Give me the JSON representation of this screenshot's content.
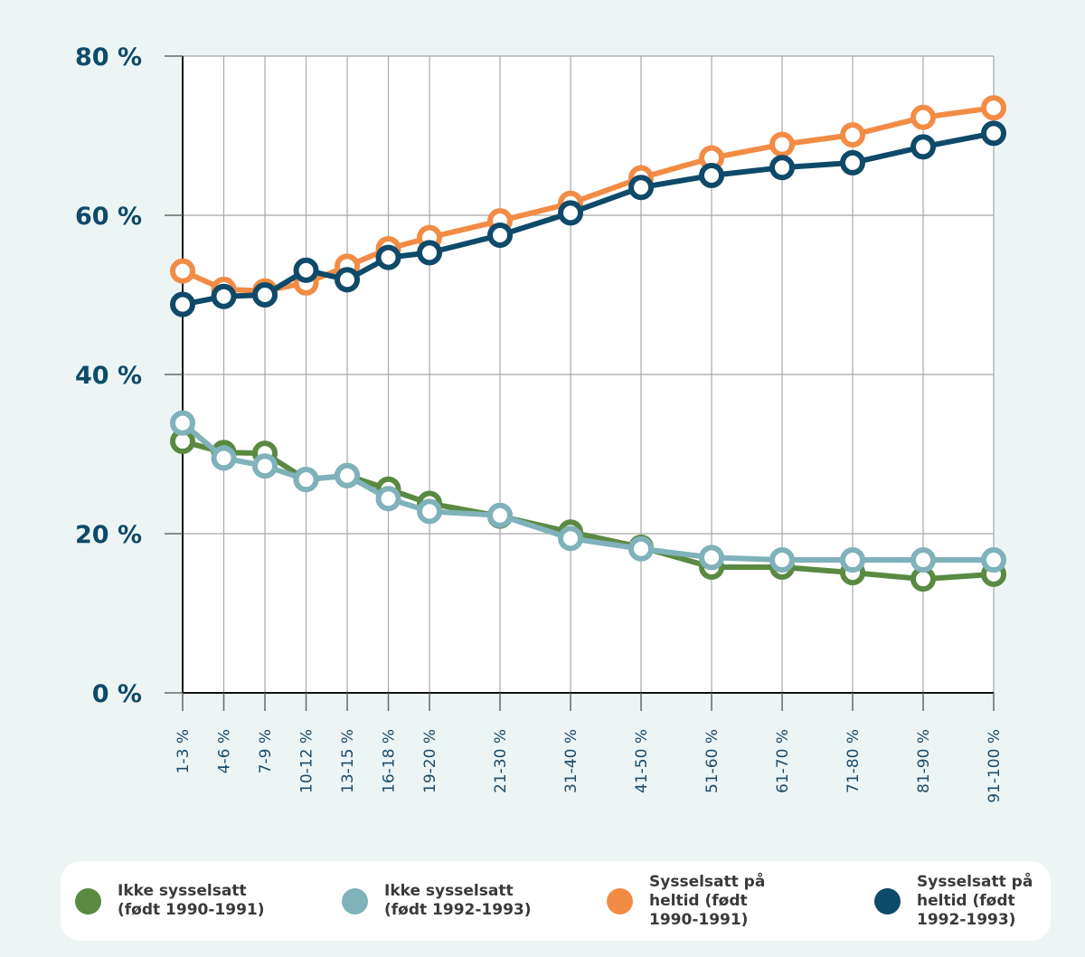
{
  "chart_data": {
    "type": "line",
    "title": "",
    "xlabel": "",
    "ylabel": "",
    "ylim": [
      0,
      80
    ],
    "y_ticks": [
      0,
      20,
      40,
      60,
      80
    ],
    "y_tick_labels": [
      "0 %",
      "20 %",
      "40 %",
      "60 %",
      "80 %"
    ],
    "grid": true,
    "legend_position": "bottom",
    "categories": [
      "1-3 %",
      "4-6 %",
      "7-9 %",
      "10-12 %",
      "13-15 %",
      "16-18 %",
      "19-20 %",
      "21-30 %",
      "31-40 %",
      "41-50 %",
      "51-60 %",
      "61-70 %",
      "71-80 %",
      "81-90 %",
      "91-100 %"
    ],
    "series": [
      {
        "name": "Ikke sysselsatt (født 1990-1991)",
        "color": "#5a8a42",
        "values": [
          31.6,
          30.2,
          30.1,
          26.8,
          27.3,
          25.6,
          23.8,
          22.2,
          20.2,
          18.3,
          15.8,
          15.8,
          15.1,
          14.3,
          14.9
        ]
      },
      {
        "name": "Ikke sysselsatt (født 1992-1993)",
        "color": "#7fb2ba",
        "values": [
          33.9,
          29.5,
          28.5,
          26.8,
          27.3,
          24.4,
          22.8,
          22.3,
          19.4,
          18.1,
          17.0,
          16.7,
          16.7,
          16.7,
          16.7
        ]
      },
      {
        "name": "Sysselsatt på heltid (født 1990-1991)",
        "color": "#f28c45",
        "values": [
          53.0,
          50.7,
          50.5,
          51.5,
          53.6,
          55.8,
          57.2,
          59.3,
          61.5,
          64.7,
          67.2,
          68.9,
          70.1,
          72.3,
          73.5
        ]
      },
      {
        "name": "Sysselsatt på heltid (født 1992-1993)",
        "color": "#0e4a6a",
        "values": [
          48.8,
          49.8,
          50.0,
          53.1,
          51.9,
          54.7,
          55.3,
          57.5,
          60.3,
          63.5,
          65.0,
          66.0,
          66.6,
          68.6,
          70.3
        ]
      }
    ]
  },
  "legend": {
    "items": [
      {
        "label": "Ikke sysselsatt\n(født 1990-1991)",
        "color": "#5a8a42"
      },
      {
        "label": "Ikke sysselsatt\n(født 1992-1993)",
        "color": "#7fb2ba"
      },
      {
        "label": "Sysselsatt på\nheltid (født\n1990-1991)",
        "color": "#f28c45"
      },
      {
        "label": "Sysselsatt på\nheltid (født\n1992-1993)",
        "color": "#0e4a6a"
      }
    ]
  }
}
